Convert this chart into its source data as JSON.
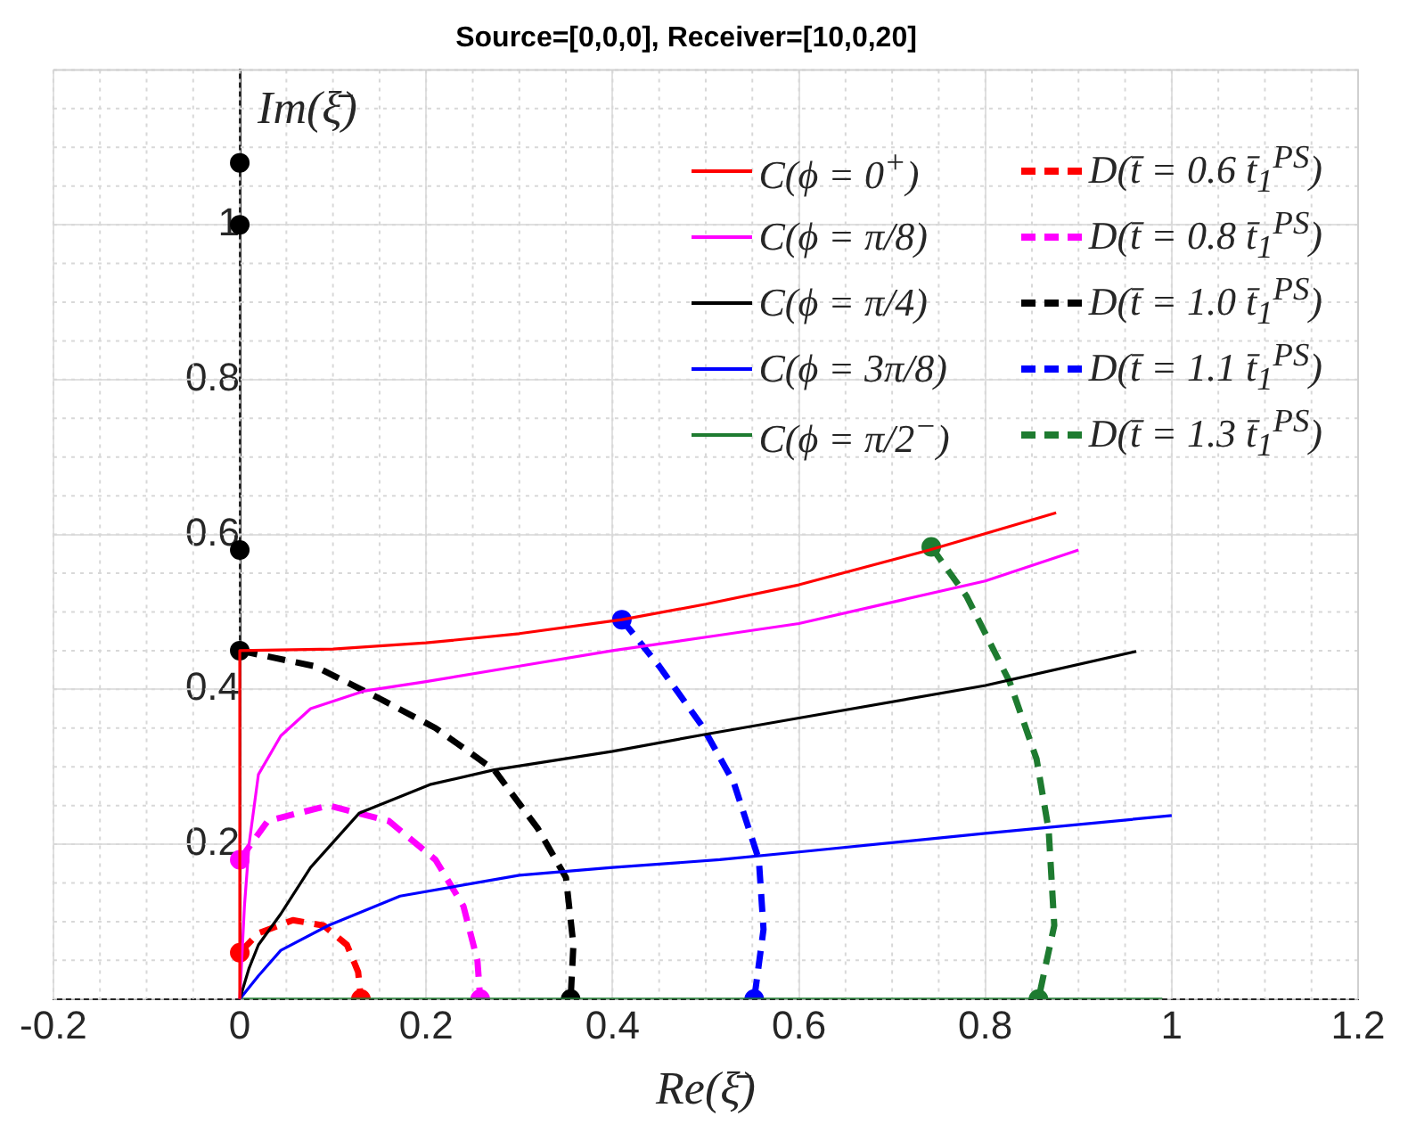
{
  "chart_data": {
    "type": "line",
    "title": "Source=[0,0,0], Receiver=[10,0,20]",
    "xlabel": "Re(ξ̄)",
    "ylabel": "Im(ξ̄)",
    "xlim": [
      -0.2,
      1.2
    ],
    "xticks": [
      -0.2,
      0,
      0.2,
      0.4,
      0.6,
      0.8,
      1,
      1.2
    ],
    "ylim": [
      0,
      1.2
    ],
    "yticks": [
      0.2,
      0.4,
      0.6,
      0.8,
      1
    ],
    "grid": true,
    "legend": "top right",
    "series": [
      {
        "name": "C(ϕ = 0$^{+}$)",
        "color": "#ff0000",
        "line_style": "solid",
        "x": [
          0,
          0,
          0.1,
          0.2,
          0.3,
          0.41,
          0.5,
          0.6,
          0.74,
          0.876
        ],
        "values": [
          0,
          0.45,
          0.452,
          0.46,
          0.472,
          0.49,
          0.51,
          0.535,
          0.58,
          0.628
        ]
      },
      {
        "name": "C(ϕ = π/8)",
        "color": "#ff00ff",
        "line_style": "solid",
        "x": [
          0,
          0.005,
          0.01,
          0.02,
          0.044,
          0.076,
          0.134,
          0.2,
          0.3,
          0.4,
          0.515,
          0.6,
          0.8,
          0.9
        ],
        "values": [
          0,
          0.12,
          0.2,
          0.29,
          0.34,
          0.375,
          0.398,
          0.41,
          0.43,
          0.45,
          0.47,
          0.485,
          0.54,
          0.58
        ]
      },
      {
        "name": "C(ϕ = π/4)",
        "color": "#000000",
        "line_style": "solid",
        "x": [
          0,
          0.01,
          0.02,
          0.044,
          0.076,
          0.128,
          0.204,
          0.273,
          0.4,
          0.5,
          0.6,
          0.8,
          0.962
        ],
        "values": [
          0,
          0.04,
          0.07,
          0.11,
          0.17,
          0.24,
          0.277,
          0.296,
          0.32,
          0.342,
          0.363,
          0.405,
          0.449
        ]
      },
      {
        "name": "C(ϕ = 3π/8)",
        "color": "#0000ff",
        "line_style": "solid",
        "x": [
          0,
          0.02,
          0.044,
          0.095,
          0.172,
          0.3,
          0.4,
          0.515,
          0.6,
          0.8,
          1
        ],
        "values": [
          0,
          0.03,
          0.063,
          0.095,
          0.133,
          0.16,
          0.17,
          0.18,
          0.19,
          0.214,
          0.237
        ]
      },
      {
        "name": "C(ϕ = π/2$^{−}$)",
        "color": "#1e7b30",
        "line_style": "solid",
        "x": [
          0,
          0.99
        ],
        "values": [
          0,
          0
        ]
      },
      {
        "name": "D(t̄ = 0.6 t̄$_{1}$$^{PS}$)",
        "color": "#ff0000",
        "line_style": "dashed",
        "x": [
          0,
          0.02,
          0.057,
          0.09,
          0.115,
          0.127,
          0.13
        ],
        "values": [
          0.06,
          0.085,
          0.102,
          0.095,
          0.07,
          0.035,
          0
        ]
      },
      {
        "name": "D(t̄ = 0.8 t̄$_{1}$$^{PS}$)",
        "color": "#ff00ff",
        "line_style": "dashed",
        "x": [
          0,
          0.03,
          0.095,
          0.16,
          0.21,
          0.24,
          0.255,
          0.258
        ],
        "values": [
          0.18,
          0.23,
          0.25,
          0.23,
          0.18,
          0.12,
          0.05,
          0
        ]
      },
      {
        "name": "D(t̄ = 1.0 t̄$_{1}$$^{PS}$)",
        "color": "#000000",
        "line_style": "dashed",
        "x": [
          0,
          0.08,
          0.147,
          0.21,
          0.273,
          0.32,
          0.35,
          0.358,
          0.355
        ],
        "values": [
          0.45,
          0.43,
          0.39,
          0.35,
          0.296,
          0.22,
          0.157,
          0.07,
          0
        ]
      },
      {
        "name": "D(t̄ = 1.1 t̄$_{1}$$^{PS}$)",
        "color": "#0000ff",
        "line_style": "dashed",
        "x": [
          0.41,
          0.45,
          0.496,
          0.53,
          0.557,
          0.562,
          0.552
        ],
        "values": [
          0.49,
          0.43,
          0.353,
          0.28,
          0.18,
          0.09,
          0
        ]
      },
      {
        "name": "D(t̄ = 1.3 t̄$_{1}$$^{PS}$)",
        "color": "#1e7b30",
        "line_style": "dashed",
        "x": [
          0.742,
          0.78,
          0.826,
          0.855,
          0.868,
          0.874,
          0.857
        ],
        "values": [
          0.584,
          0.52,
          0.41,
          0.31,
          0.218,
          0.095,
          0
        ]
      },
      {
        "type": "scatter",
        "marker": "circle",
        "color": "#ff0000",
        "x": [
          0,
          0.13
        ],
        "values": [
          0.06,
          0
        ]
      },
      {
        "type": "scatter",
        "marker": "circle",
        "color": "#ff00ff",
        "x": [
          0,
          0.258
        ],
        "values": [
          0.18,
          0
        ]
      },
      {
        "type": "scatter",
        "marker": "circle",
        "color": "#000000",
        "x": [
          0,
          0.355
        ],
        "values": [
          0.45,
          0
        ]
      },
      {
        "type": "scatter",
        "marker": "circle",
        "color": "#0000ff",
        "x": [
          0.41,
          0.552
        ],
        "values": [
          0.49,
          0
        ]
      },
      {
        "type": "scatter",
        "marker": "circle",
        "color": "#1e7b30",
        "x": [
          0.742,
          0.857
        ],
        "values": [
          0.584,
          0
        ]
      },
      {
        "type": "scatter",
        "marker": "circle",
        "color": "#000000",
        "x": [
          0,
          0,
          0
        ],
        "values": [
          1.08,
          1,
          0.58
        ]
      }
    ]
  }
}
